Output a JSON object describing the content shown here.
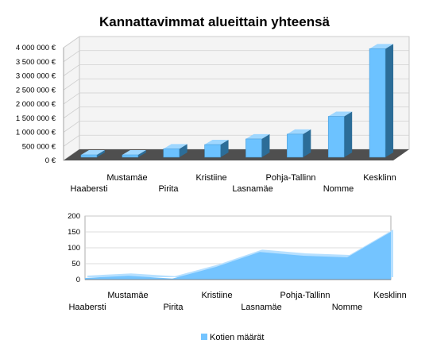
{
  "colors": {
    "bar_front": "#6cc2ff",
    "bar_side": "#2c6d98",
    "bar_top": "#9fd7ff",
    "floor": "#4f4f4f",
    "area_fill": "#74c4ff",
    "wall": "#f4f4f4",
    "grid": "#d0d0d0"
  },
  "chart_data": [
    {
      "type": "bar",
      "style": "3d",
      "title": "Kannattavimmat alueittain yhteensä",
      "categories": [
        "Haabersti",
        "Mustamäe",
        "Pirita",
        "Kristiine",
        "Lasnamäe",
        "Pohja-Tallinn",
        "Nomme",
        "Kesklinn"
      ],
      "values": [
        40000,
        50000,
        300000,
        450000,
        650000,
        820000,
        1450000,
        3850000
      ],
      "ylim": [
        0,
        4000000
      ],
      "yticks": [
        0,
        500000,
        1000000,
        1500000,
        2000000,
        2500000,
        3000000,
        3500000,
        4000000
      ],
      "ytick_labels": [
        "0 €",
        "500 000 €",
        "1 000 000 €",
        "1 500 000 €",
        "2 000 000 €",
        "2 500 000 €",
        "3 000 000 €",
        "3 500 000 €",
        "4 000 000 €"
      ],
      "grid": true
    },
    {
      "type": "area",
      "categories": [
        "Haabersti",
        "Mustamäe",
        "Pirita",
        "Kristiine",
        "Lasnamäe",
        "Pohja-Tallinn",
        "Nomme",
        "Kesklinn"
      ],
      "series": [
        {
          "name": "Kotien määrät",
          "values": [
            5,
            12,
            3,
            40,
            87,
            75,
            70,
            150
          ]
        }
      ],
      "ylim": [
        0,
        200
      ],
      "yticks": [
        0,
        50,
        100,
        150,
        200
      ],
      "ytick_labels": [
        "0",
        "50",
        "100",
        "150",
        "200"
      ],
      "legend": "bottom",
      "grid": true
    }
  ]
}
